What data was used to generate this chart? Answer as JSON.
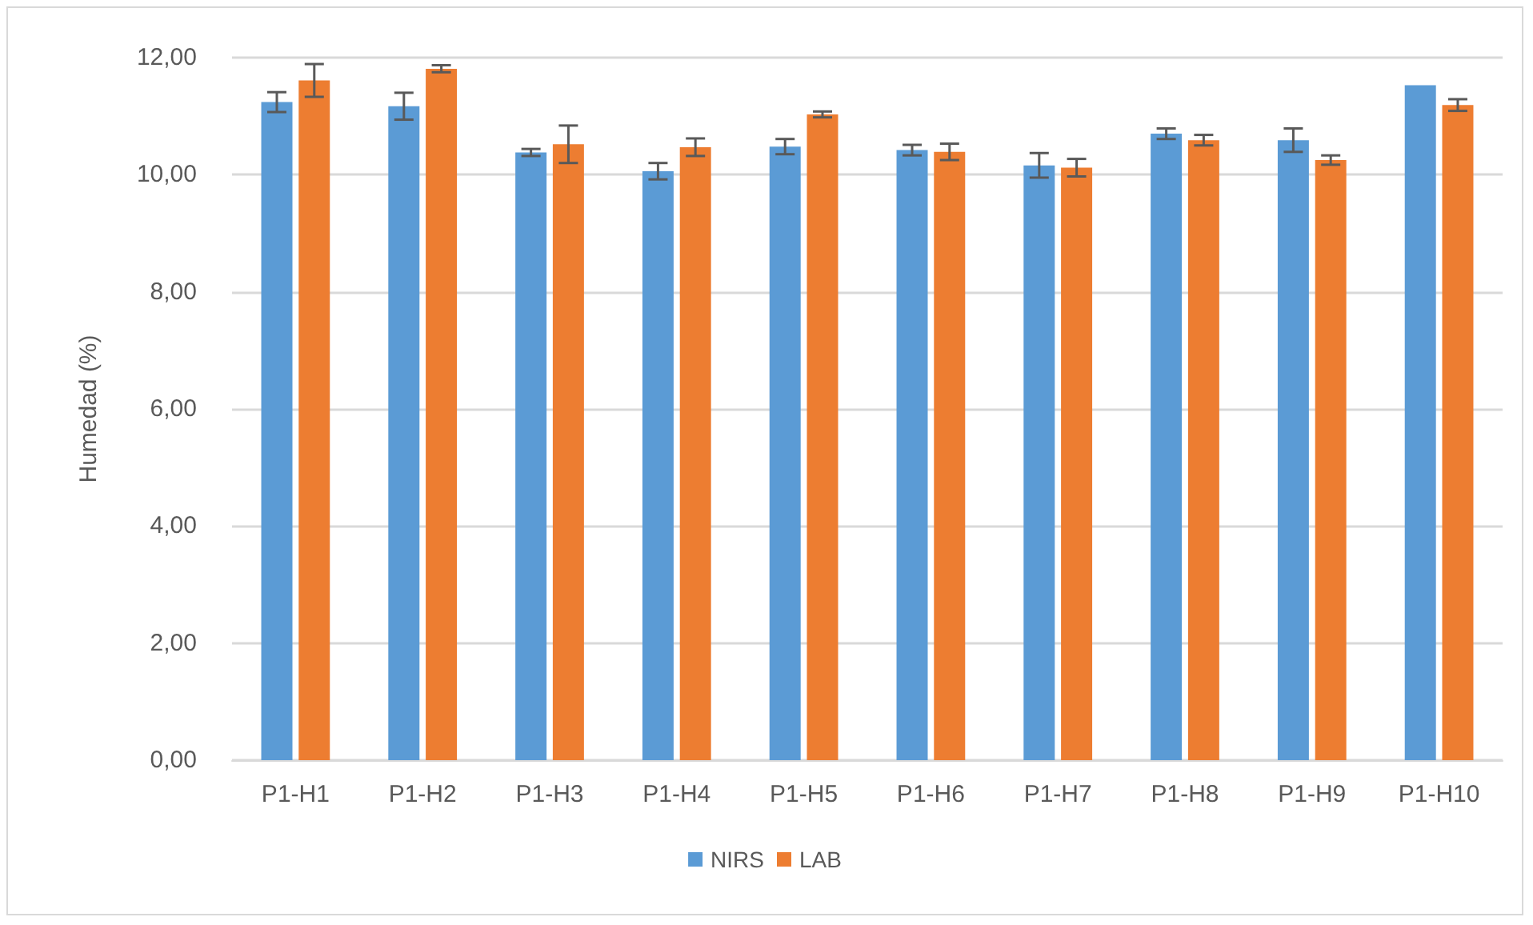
{
  "chart_data": {
    "type": "bar",
    "ylabel": "Humedad (%)",
    "categories": [
      "P1-H1",
      "P1-H2",
      "P1-H3",
      "P1-H4",
      "P1-H5",
      "P1-H6",
      "P1-H7",
      "P1-H8",
      "P1-H9",
      "P1-H10"
    ],
    "series": [
      {
        "name": "NIRS",
        "color": "#5b9bd5",
        "values": [
          11.24,
          11.17,
          10.38,
          10.06,
          10.48,
          10.42,
          10.16,
          10.7,
          10.59,
          11.53
        ],
        "errors": [
          0.17,
          0.23,
          0.06,
          0.14,
          0.13,
          0.09,
          0.21,
          0.09,
          0.2,
          null
        ]
      },
      {
        "name": "LAB",
        "color": "#ed7d31",
        "values": [
          11.61,
          11.81,
          10.52,
          10.47,
          11.03,
          10.39,
          10.12,
          10.59,
          10.25,
          11.19
        ],
        "errors": [
          0.28,
          0.06,
          0.32,
          0.15,
          0.05,
          0.14,
          0.15,
          0.09,
          0.08,
          0.1
        ]
      }
    ],
    "ylim": [
      0,
      12
    ],
    "yticks": [
      {
        "value": 0,
        "label": "0,00"
      },
      {
        "value": 2,
        "label": "2,00"
      },
      {
        "value": 4,
        "label": "4,00"
      },
      {
        "value": 6,
        "label": "6,00"
      },
      {
        "value": 8,
        "label": "8,00"
      },
      {
        "value": 10,
        "label": "10,00"
      },
      {
        "value": 12,
        "label": "12,00"
      }
    ],
    "grid": "y",
    "legend": "bottom"
  }
}
